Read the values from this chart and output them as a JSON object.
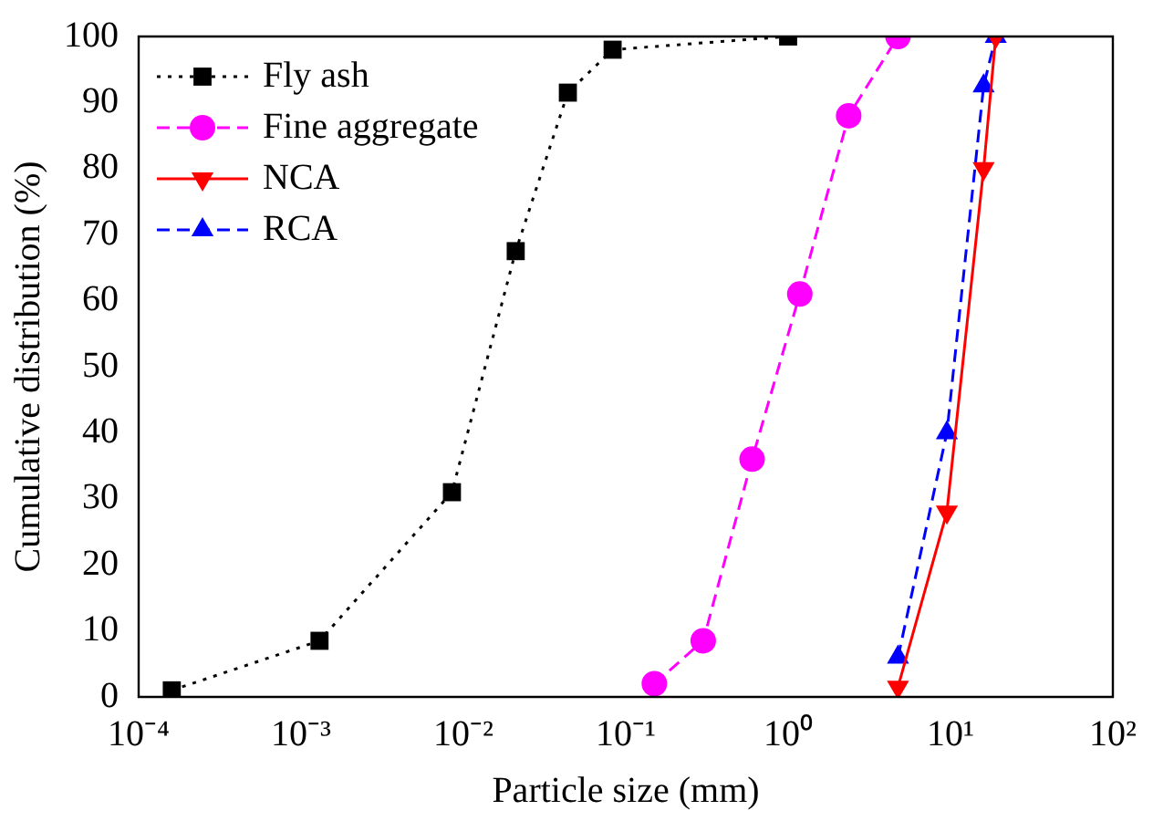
{
  "chart_data": {
    "type": "line",
    "xlabel": "Particle size (mm)",
    "ylabel": "Cumulative distribution (%)",
    "log": "x",
    "xlim": [
      0.0001,
      100
    ],
    "xticks": [
      {
        "value": 0.0001,
        "label": "10⁻⁴"
      },
      {
        "value": 0.001,
        "label": "10⁻³"
      },
      {
        "value": 0.01,
        "label": "10⁻²"
      },
      {
        "value": 0.1,
        "label": "10⁻¹"
      },
      {
        "value": 1,
        "label": "10⁰"
      },
      {
        "value": 10,
        "label": "10¹"
      },
      {
        "value": 100,
        "label": "10²"
      }
    ],
    "ylim": [
      0,
      100
    ],
    "yticks": [
      0,
      10,
      20,
      30,
      40,
      50,
      60,
      70,
      80,
      90,
      100
    ],
    "grid": false,
    "legend": "top left",
    "series": [
      {
        "name": "Fly ash",
        "color": "#000000",
        "marker": "square",
        "line_style": "dotted",
        "x": [
          0.00016,
          0.0013,
          0.0085,
          0.021,
          0.044,
          0.083,
          1.0
        ],
        "values": [
          1,
          8.5,
          31,
          67.5,
          91.5,
          98,
          100
        ]
      },
      {
        "name": "Fine aggregate",
        "color": "#ff00ff",
        "marker": "circle",
        "line_style": "dashed",
        "x": [
          0.15,
          0.3,
          0.6,
          1.18,
          2.36,
          4.75
        ],
        "values": [
          2,
          8.5,
          36,
          61,
          88,
          100
        ]
      },
      {
        "name": "NCA",
        "color": "#ff0000",
        "marker": "triangle-down",
        "line_style": "solid",
        "x": [
          4.75,
          9.5,
          16,
          19
        ],
        "values": [
          1.5,
          28,
          80,
          100
        ]
      },
      {
        "name": "RCA",
        "color": "#0000ff",
        "marker": "triangle",
        "line_style": "dashed",
        "x": [
          4.75,
          9.5,
          16,
          19
        ],
        "values": [
          6,
          40,
          92.5,
          100
        ]
      }
    ]
  }
}
